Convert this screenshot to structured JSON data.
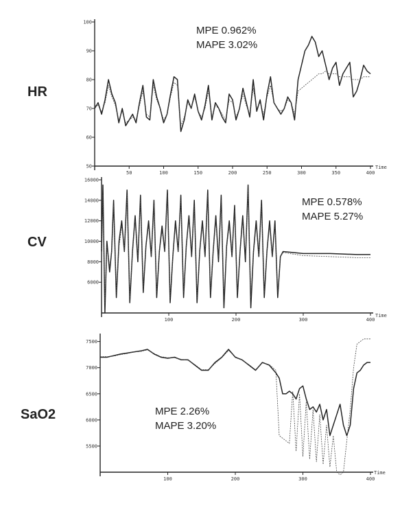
{
  "chart_data": [
    {
      "type": "line",
      "row_label": "HR",
      "stats": [
        "MPE   0.962%",
        "MAPE  3.02%"
      ],
      "xlabel": "Time",
      "ylabel": "",
      "xlim": [
        0,
        400
      ],
      "ylim": [
        50,
        100
      ],
      "x_ticks": [
        50,
        100,
        150,
        200,
        250,
        300,
        350,
        400
      ],
      "y_ticks": [
        50,
        60,
        70,
        80,
        90,
        100
      ],
      "series": [
        {
          "x": [
            0,
            5,
            10,
            15,
            20,
            25,
            30,
            35,
            40,
            45,
            50,
            55,
            60,
            65,
            70,
            75,
            80,
            85,
            90,
            95,
            100,
            105,
            110,
            115,
            120,
            125,
            130,
            135,
            140,
            145,
            150,
            155,
            160,
            165,
            170,
            175,
            180,
            185,
            190,
            195,
            200,
            205,
            210,
            215,
            220,
            225,
            230,
            235,
            240,
            245,
            250,
            255,
            260,
            265,
            270,
            275,
            280,
            285,
            290,
            295,
            300,
            305,
            310,
            315,
            320,
            325,
            330,
            335,
            340,
            345,
            350,
            355,
            360,
            365,
            370,
            375,
            380,
            385,
            390,
            395,
            400
          ],
          "y": [
            70,
            72,
            68,
            73,
            80,
            75,
            72,
            65,
            70,
            64,
            66,
            68,
            65,
            72,
            78,
            67,
            66,
            80,
            74,
            70,
            65,
            68,
            75,
            81,
            80,
            62,
            66,
            73,
            70,
            75,
            69,
            66,
            71,
            78,
            66,
            72,
            70,
            67,
            65,
            75,
            73,
            66,
            70,
            77,
            72,
            67,
            80,
            69,
            73,
            66,
            75,
            81,
            72,
            70,
            68,
            70,
            74,
            72,
            66,
            80,
            85,
            90,
            92,
            95,
            93,
            88,
            90,
            85,
            80,
            84,
            86,
            78,
            82,
            84,
            86,
            74,
            76,
            80,
            85,
            83,
            82
          ]
        },
        {
          "x": [
            0,
            5,
            10,
            15,
            20,
            25,
            30,
            35,
            40,
            45,
            50,
            55,
            60,
            65,
            70,
            75,
            80,
            85,
            90,
            95,
            100,
            105,
            110,
            115,
            120,
            125,
            130,
            135,
            140,
            145,
            150,
            155,
            160,
            165,
            170,
            175,
            180,
            185,
            190,
            195,
            200,
            205,
            210,
            215,
            220,
            225,
            230,
            235,
            240,
            245,
            250,
            255,
            260,
            265,
            270,
            275,
            280,
            285,
            290,
            295,
            300,
            305,
            310,
            315,
            320,
            325,
            330,
            335,
            340,
            345,
            350,
            355,
            360,
            365,
            370,
            375,
            380,
            385,
            390,
            395,
            400
          ],
          "y": [
            71,
            71,
            69,
            72,
            78,
            74,
            71,
            66,
            69,
            65,
            66,
            67,
            66,
            71,
            76,
            68,
            67,
            78,
            73,
            70,
            66,
            68,
            74,
            79,
            78,
            64,
            67,
            72,
            70,
            74,
            69,
            67,
            70,
            76,
            67,
            71,
            70,
            68,
            66,
            73,
            72,
            67,
            70,
            75,
            71,
            68,
            77,
            70,
            72,
            68,
            74,
            78,
            72,
            70,
            69,
            70,
            73,
            72,
            68,
            76,
            77,
            78,
            79,
            80,
            81,
            82,
            82,
            83,
            82,
            82,
            82,
            81,
            81,
            81,
            81,
            80,
            80,
            80,
            81,
            81,
            81
          ]
        }
      ]
    },
    {
      "type": "line",
      "row_label": "CV",
      "stats": [
        "MPE    0.578%",
        "MAPE  5.27%"
      ],
      "xlabel": "Time",
      "ylabel": "",
      "xlim": [
        0,
        400
      ],
      "ylim": [
        3000,
        16000
      ],
      "x_ticks": [
        100,
        200,
        300,
        400
      ],
      "y_ticks": [
        6000,
        8000,
        10000,
        12000,
        14000,
        16000
      ],
      "series": [
        {
          "x": [
            0,
            2,
            5,
            8,
            12,
            15,
            18,
            22,
            26,
            30,
            34,
            38,
            42,
            46,
            50,
            54,
            58,
            62,
            66,
            70,
            74,
            78,
            82,
            86,
            90,
            94,
            98,
            102,
            106,
            110,
            114,
            118,
            122,
            126,
            130,
            134,
            138,
            142,
            146,
            150,
            154,
            158,
            162,
            166,
            170,
            174,
            178,
            182,
            186,
            190,
            194,
            198,
            202,
            206,
            210,
            214,
            218,
            222,
            226,
            230,
            234,
            238,
            242,
            246,
            250,
            254,
            258,
            262,
            266,
            270,
            300,
            340,
            380,
            400
          ],
          "y": [
            9000,
            15500,
            3000,
            10000,
            7000,
            9000,
            14000,
            4500,
            10000,
            12000,
            9000,
            15000,
            4000,
            9000,
            12500,
            8000,
            14500,
            5000,
            9500,
            12000,
            8500,
            14000,
            4500,
            9000,
            11500,
            9000,
            15000,
            4000,
            8500,
            12000,
            9000,
            14500,
            4500,
            9500,
            12500,
            8500,
            14000,
            4000,
            9000,
            12000,
            8500,
            15000,
            4500,
            9000,
            12500,
            8000,
            14500,
            3500,
            9500,
            12000,
            8500,
            13500,
            4500,
            9000,
            12500,
            8000,
            15500,
            3500,
            9000,
            12000,
            8500,
            14000,
            4500,
            9000,
            12000,
            8500,
            12000,
            4500,
            8500,
            9000,
            8800,
            8800,
            8700,
            8700
          ]
        },
        {
          "x": [
            0,
            2,
            5,
            8,
            12,
            15,
            18,
            22,
            26,
            30,
            34,
            38,
            42,
            46,
            50,
            54,
            58,
            62,
            66,
            70,
            74,
            78,
            82,
            86,
            90,
            94,
            98,
            102,
            106,
            110,
            114,
            118,
            122,
            126,
            130,
            134,
            138,
            142,
            146,
            150,
            154,
            158,
            162,
            166,
            170,
            174,
            178,
            182,
            186,
            190,
            194,
            198,
            202,
            206,
            210,
            214,
            218,
            222,
            226,
            230,
            234,
            238,
            242,
            246,
            250,
            254,
            258,
            262,
            266,
            270,
            300,
            340,
            380,
            400
          ],
          "y": [
            9000,
            14500,
            4000,
            9500,
            7500,
            9000,
            13500,
            5000,
            9500,
            11500,
            9000,
            14500,
            4500,
            9000,
            12000,
            8500,
            14000,
            5500,
            9500,
            11500,
            8500,
            13500,
            5000,
            9000,
            11000,
            9000,
            14500,
            4500,
            8500,
            11500,
            9000,
            14000,
            5000,
            9500,
            12000,
            8500,
            13500,
            4500,
            9000,
            11500,
            8500,
            14500,
            5000,
            9000,
            12000,
            8500,
            14000,
            4500,
            9500,
            11500,
            8500,
            13000,
            5000,
            9000,
            12000,
            8500,
            15000,
            4500,
            9000,
            11500,
            8500,
            13500,
            5000,
            9000,
            11500,
            8500,
            11500,
            5000,
            8500,
            8900,
            8600,
            8500,
            8400,
            8400
          ]
        }
      ]
    },
    {
      "type": "line",
      "row_label": "SaO2",
      "stats": [
        "MPE    2.26%",
        "MAPE  3.20%"
      ],
      "xlabel": "Time",
      "ylabel": "",
      "xlim": [
        0,
        400
      ],
      "ylim": [
        5000,
        7600
      ],
      "x_ticks": [
        100,
        200,
        300,
        400
      ],
      "y_ticks": [
        5500,
        6000,
        6500,
        7000,
        7500
      ],
      "series": [
        {
          "x": [
            0,
            10,
            20,
            30,
            40,
            50,
            60,
            70,
            80,
            90,
            100,
            110,
            120,
            130,
            140,
            150,
            160,
            170,
            180,
            190,
            200,
            210,
            220,
            230,
            240,
            250,
            260,
            265,
            270,
            275,
            280,
            285,
            290,
            295,
            300,
            305,
            310,
            315,
            320,
            325,
            330,
            335,
            340,
            345,
            350,
            355,
            360,
            365,
            370,
            375,
            380,
            385,
            390,
            395,
            400
          ],
          "y": [
            7200,
            7200,
            7230,
            7260,
            7280,
            7300,
            7320,
            7350,
            7260,
            7200,
            7180,
            7200,
            7150,
            7150,
            7050,
            6950,
            6950,
            7100,
            7200,
            7350,
            7200,
            7150,
            7050,
            6950,
            7100,
            7050,
            6900,
            6800,
            6500,
            6500,
            6550,
            6500,
            6400,
            6600,
            6650,
            6400,
            6200,
            6250,
            6150,
            6300,
            6000,
            6200,
            5700,
            5900,
            6100,
            6300,
            5900,
            5700,
            5900,
            6600,
            6900,
            6950,
            7050,
            7100,
            7100
          ]
        },
        {
          "x": [
            0,
            10,
            20,
            30,
            40,
            50,
            60,
            70,
            80,
            90,
            100,
            110,
            120,
            130,
            140,
            150,
            160,
            170,
            180,
            190,
            200,
            210,
            220,
            230,
            240,
            250,
            260,
            265,
            270,
            275,
            280,
            285,
            290,
            295,
            300,
            305,
            310,
            315,
            320,
            325,
            330,
            335,
            340,
            345,
            350,
            355,
            360,
            365,
            370,
            375,
            380,
            385,
            390,
            395,
            400
          ],
          "y": [
            7210,
            7210,
            7220,
            7250,
            7270,
            7300,
            7310,
            7340,
            7270,
            7210,
            7190,
            7190,
            7160,
            7140,
            7060,
            6960,
            6960,
            7080,
            7190,
            7330,
            7210,
            7140,
            7060,
            6960,
            7090,
            7060,
            6950,
            5700,
            5650,
            5600,
            5550,
            6550,
            5400,
            6500,
            5300,
            6350,
            5250,
            6200,
            5200,
            6100,
            5150,
            5900,
            5100,
            5700,
            5000,
            4950,
            5000,
            5600,
            6200,
            7000,
            7450,
            7500,
            7550,
            7550,
            7550
          ]
        }
      ]
    }
  ]
}
